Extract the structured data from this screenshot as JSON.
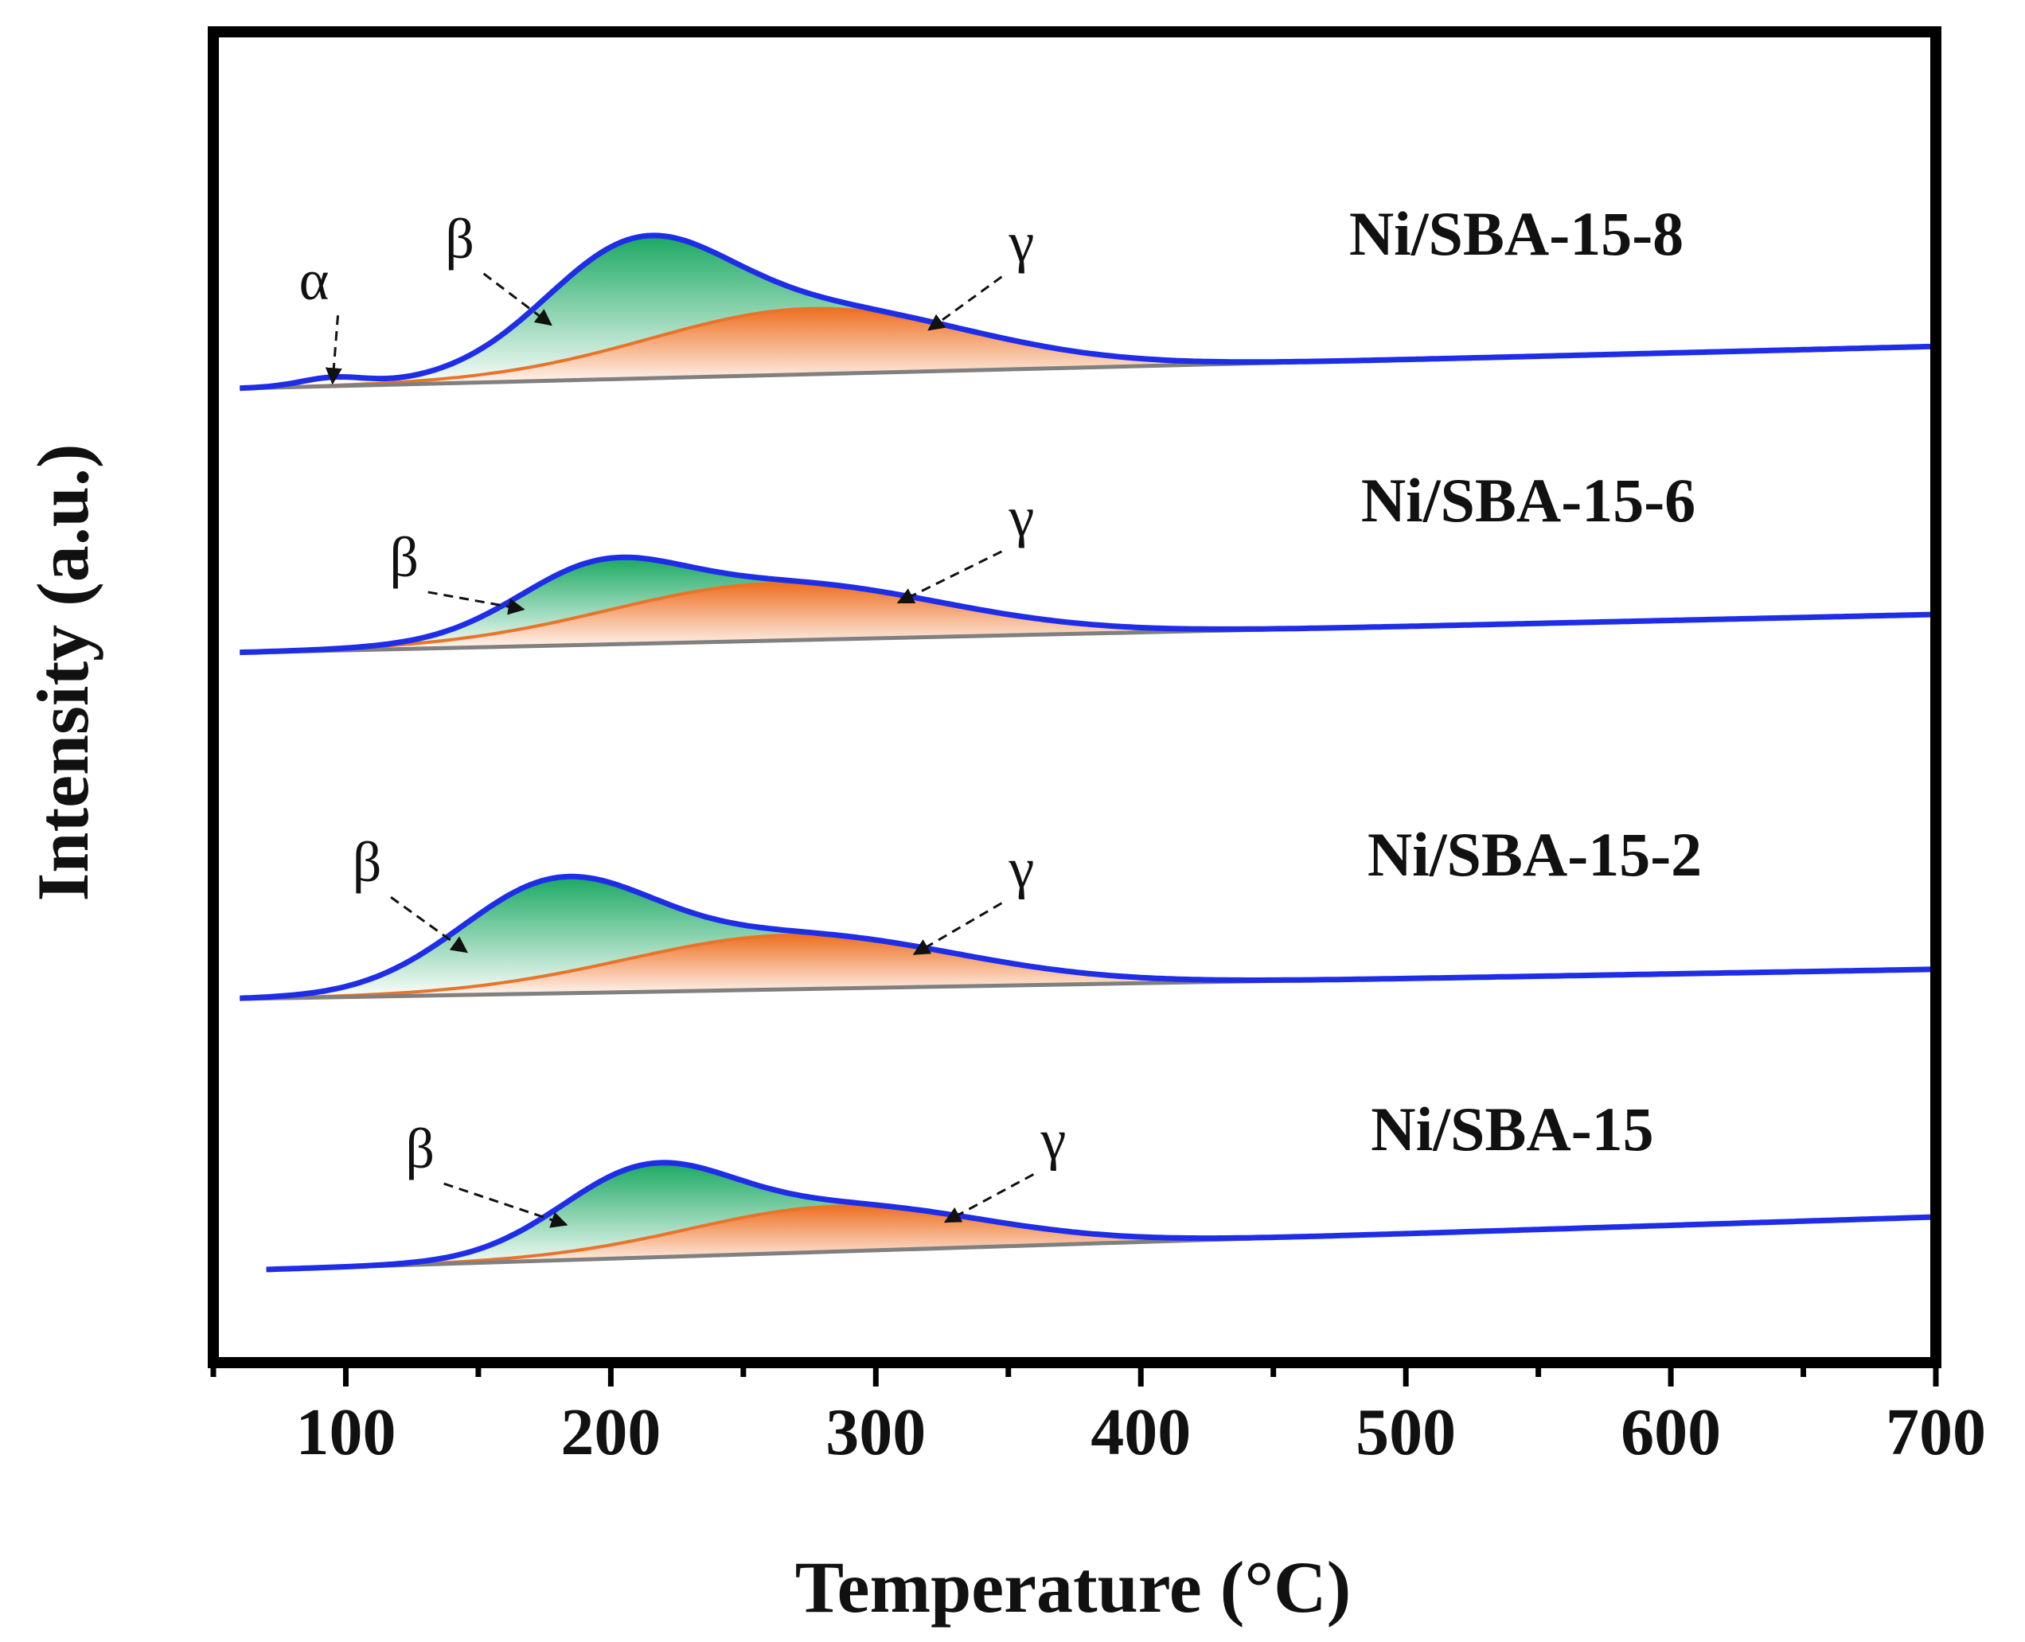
{
  "chart_data": {
    "type": "line",
    "title": "",
    "xlabel": "Temperature (°C)",
    "ylabel": "Intensity (a.u.)",
    "xlim": [
      50,
      700
    ],
    "xticks": [
      100,
      200,
      300,
      400,
      500,
      600,
      700
    ],
    "xtick_labels": [
      "100",
      "200",
      "300",
      "400",
      "500",
      "600",
      "700"
    ],
    "y_ticks_shown": false,
    "colors": {
      "envelope": "#1f2ee6",
      "beta_fill": "#21b36b",
      "gamma_fill": "#f07a2e",
      "baseline": "#808080",
      "gamma_edge": "#e8742a",
      "frame": "#000000",
      "arrow": "#111111"
    },
    "series": [
      {
        "name": "Ni/SBA-15-8",
        "label": "Ni/SBA-15-8",
        "baseline_start": [
          60,
          0.0
        ],
        "baseline_end": [
          700,
          0.16
        ],
        "envelope_peak_temp": 213,
        "alpha": {
          "center": 95,
          "height": 0.03,
          "width": 12
        },
        "beta": {
          "center": 208,
          "height": 0.4,
          "width": 34
        },
        "gamma": {
          "center": 275,
          "height": 0.25,
          "width": 60
        },
        "peak_labels": [
          {
            "text": "α",
            "temp": 88
          },
          {
            "text": "β",
            "temp": 143
          },
          {
            "text": "γ",
            "temp": 355
          }
        ]
      },
      {
        "name": "Ni/SBA-15-6",
        "label": "Ni/SBA-15-6",
        "baseline_start": [
          60,
          0.0
        ],
        "baseline_end": [
          700,
          0.16
        ],
        "envelope_peak_temp": 205,
        "alpha": null,
        "beta": {
          "center": 194,
          "height": 0.22,
          "width": 30
        },
        "gamma": {
          "center": 262,
          "height": 0.24,
          "width": 62
        },
        "peak_labels": [
          {
            "text": "β",
            "temp": 122
          },
          {
            "text": "γ",
            "temp": 355
          }
        ]
      },
      {
        "name": "Ni/SBA-15-2",
        "label": "Ni/SBA-15-2",
        "baseline_start": [
          60,
          0.0
        ],
        "baseline_end": [
          700,
          0.12
        ],
        "envelope_peak_temp": 190,
        "alpha": null,
        "beta": {
          "center": 178,
          "height": 0.39,
          "width": 36
        },
        "gamma": {
          "center": 268,
          "height": 0.22,
          "width": 62
        },
        "peak_labels": [
          {
            "text": "β",
            "temp": 108
          },
          {
            "text": "γ",
            "temp": 355
          }
        ]
      },
      {
        "name": "Ni/SBA-15",
        "label": "Ni/SBA-15",
        "baseline_start": [
          70,
          0.0
        ],
        "baseline_end": [
          700,
          0.22
        ],
        "envelope_peak_temp": 220,
        "alpha": null,
        "beta": {
          "center": 212,
          "height": 0.31,
          "width": 32
        },
        "gamma": {
          "center": 285,
          "height": 0.19,
          "width": 55
        },
        "peak_labels": [
          {
            "text": "β",
            "temp": 128
          },
          {
            "text": "γ",
            "temp": 367
          }
        ]
      }
    ]
  }
}
